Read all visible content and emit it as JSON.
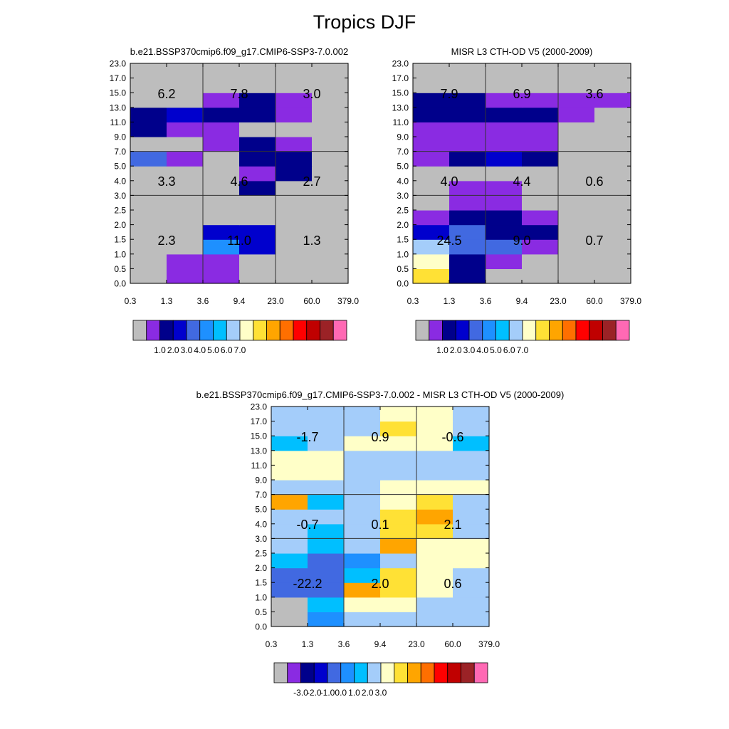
{
  "page": {
    "title": "Tropics DJF"
  },
  "palette": [
    "#bdbdbd",
    "#8a2be2",
    "#00008b",
    "#0000cd",
    "#4169e1",
    "#1e90ff",
    "#00bfff",
    "#a4cdfa",
    "#ffffc8",
    "#ffe135",
    "#ffa500",
    "#ff6f00",
    "#ff0000",
    "#c00000",
    "#9b2226",
    "#ff69b4"
  ],
  "chart_data": [
    {
      "type": "heatmap",
      "title": "b.e21.BSSP370cmip6.f09_g17.CMIP6-SSP3-7.0.002",
      "x_ticks": [
        "0.3",
        "1.3",
        "3.6",
        "9.4",
        "23.0",
        "60.0",
        "379.0"
      ],
      "y_ticks": [
        "0.0",
        "0.5",
        "1.0",
        "1.5",
        "2.0",
        "2.5",
        "3.0",
        "4.0",
        "5.0",
        "7.0",
        "9.0",
        "11.0",
        "13.0",
        "15.0",
        "17.0",
        "23.0"
      ],
      "grid": {
        "x_breaks": [
          "3.6",
          "23.0"
        ],
        "y_breaks": [
          "3.0",
          "7.0"
        ]
      },
      "cells_note": "rows listed bottom (0.0-0.5) to top (17.0-23.0); values are palette indices",
      "cells": [
        [
          0,
          1,
          1,
          0,
          0,
          0
        ],
        [
          0,
          1,
          1,
          0,
          0,
          0
        ],
        [
          0,
          0,
          5,
          3,
          0,
          0
        ],
        [
          0,
          0,
          3,
          3,
          0,
          0
        ],
        [
          0,
          0,
          0,
          0,
          0,
          0
        ],
        [
          0,
          0,
          0,
          0,
          0,
          0
        ],
        [
          0,
          0,
          0,
          2,
          0,
          0
        ],
        [
          0,
          0,
          0,
          1,
          2,
          0
        ],
        [
          4,
          1,
          0,
          2,
          2,
          0
        ],
        [
          0,
          0,
          1,
          2,
          1,
          0
        ],
        [
          2,
          1,
          1,
          0,
          0,
          0
        ],
        [
          2,
          3,
          2,
          2,
          1,
          0
        ],
        [
          0,
          0,
          1,
          2,
          1,
          0
        ],
        [
          0,
          0,
          0,
          0,
          0,
          0
        ],
        [
          0,
          0,
          0,
          0,
          0,
          0
        ]
      ],
      "box_labels": [
        {
          "column": 0,
          "row": 2,
          "value": "2.3"
        },
        {
          "column": 1,
          "row": 2,
          "value": "11.0"
        },
        {
          "column": 2,
          "row": 2,
          "value": "1.3"
        },
        {
          "column": 0,
          "row": 1,
          "value": "3.3"
        },
        {
          "column": 1,
          "row": 1,
          "value": "4.6"
        },
        {
          "column": 2,
          "row": 1,
          "value": "2.7"
        },
        {
          "column": 0,
          "row": 0,
          "value": "6.2"
        },
        {
          "column": 1,
          "row": 0,
          "value": "7.8"
        },
        {
          "column": 2,
          "row": 0,
          "value": "3.0"
        }
      ],
      "colorbar_labels": [
        "1.0",
        "2.0",
        "3.0",
        "4.0",
        "5.0",
        "6.0",
        "7.0"
      ]
    },
    {
      "type": "heatmap",
      "title": "MISR L3 CTH-OD V5 (2000-2009)",
      "x_ticks": [
        "0.3",
        "1.3",
        "3.6",
        "9.4",
        "23.0",
        "60.0",
        "379.0"
      ],
      "y_ticks": [
        "0.0",
        "0.5",
        "1.0",
        "1.5",
        "2.0",
        "2.5",
        "3.0",
        "4.0",
        "5.0",
        "7.0",
        "9.0",
        "11.0",
        "13.0",
        "15.0",
        "17.0",
        "23.0"
      ],
      "grid": {
        "x_breaks": [
          "3.6",
          "23.0"
        ],
        "y_breaks": [
          "3.0",
          "7.0"
        ]
      },
      "cells_note": "rows listed bottom (0.0-0.5) to top (17.0-23.0); values are palette indices",
      "cells": [
        [
          9,
          2,
          0,
          0,
          0,
          0
        ],
        [
          8,
          2,
          1,
          0,
          0,
          0
        ],
        [
          7,
          4,
          4,
          1,
          0,
          0
        ],
        [
          3,
          4,
          2,
          2,
          0,
          0
        ],
        [
          1,
          2,
          2,
          1,
          0,
          0
        ],
        [
          0,
          1,
          1,
          0,
          0,
          0
        ],
        [
          0,
          1,
          1,
          0,
          0,
          0
        ],
        [
          0,
          0,
          0,
          0,
          0,
          0
        ],
        [
          1,
          2,
          3,
          2,
          0,
          0
        ],
        [
          1,
          1,
          1,
          1,
          0,
          0
        ],
        [
          1,
          1,
          1,
          1,
          0,
          0
        ],
        [
          2,
          2,
          2,
          2,
          1,
          0
        ],
        [
          2,
          2,
          1,
          1,
          1,
          1
        ],
        [
          0,
          0,
          0,
          0,
          0,
          0
        ],
        [
          0,
          0,
          0,
          0,
          0,
          0
        ]
      ],
      "box_labels": [
        {
          "column": 0,
          "row": 2,
          "value": "24.5"
        },
        {
          "column": 1,
          "row": 2,
          "value": "9.0"
        },
        {
          "column": 2,
          "row": 2,
          "value": "0.7"
        },
        {
          "column": 0,
          "row": 1,
          "value": "4.0"
        },
        {
          "column": 1,
          "row": 1,
          "value": "4.4"
        },
        {
          "column": 2,
          "row": 1,
          "value": "0.6"
        },
        {
          "column": 0,
          "row": 0,
          "value": "7.9"
        },
        {
          "column": 1,
          "row": 0,
          "value": "6.9"
        },
        {
          "column": 2,
          "row": 0,
          "value": "3.6"
        }
      ],
      "colorbar_labels": [
        "1.0",
        "2.0",
        "3.0",
        "4.0",
        "5.0",
        "6.0",
        "7.0"
      ]
    },
    {
      "type": "heatmap",
      "title": "b.e21.BSSP370cmip6.f09_g17.CMIP6-SSP3-7.0.002 - MISR L3 CTH-OD V5 (2000-2009)",
      "x_ticks": [
        "0.3",
        "1.3",
        "3.6",
        "9.4",
        "23.0",
        "60.0",
        "379.0"
      ],
      "y_ticks": [
        "0.0",
        "0.5",
        "1.0",
        "1.5",
        "2.0",
        "2.5",
        "3.0",
        "4.0",
        "5.0",
        "7.0",
        "9.0",
        "11.0",
        "13.0",
        "15.0",
        "17.0",
        "23.0"
      ],
      "grid": {
        "x_breaks": [
          "3.6",
          "23.0"
        ],
        "y_breaks": [
          "3.0",
          "7.0"
        ]
      },
      "cells_note": "rows listed bottom (0.0-0.5) to top (17.0-23.0); values are palette indices",
      "cells": [
        [
          0,
          5,
          7,
          7,
          7,
          7
        ],
        [
          0,
          6,
          8,
          8,
          7,
          7
        ],
        [
          4,
          4,
          10,
          9,
          8,
          7
        ],
        [
          4,
          4,
          6,
          9,
          8,
          7
        ],
        [
          6,
          4,
          5,
          7,
          8,
          8
        ],
        [
          7,
          6,
          7,
          10,
          8,
          8
        ],
        [
          7,
          6,
          7,
          9,
          9,
          7
        ],
        [
          7,
          7,
          7,
          9,
          10,
          7
        ],
        [
          10,
          6,
          7,
          8,
          9,
          7
        ],
        [
          7,
          7,
          7,
          8,
          8,
          8
        ],
        [
          8,
          8,
          7,
          7,
          7,
          7
        ],
        [
          8,
          8,
          7,
          7,
          7,
          7
        ],
        [
          6,
          7,
          8,
          8,
          8,
          6
        ],
        [
          7,
          7,
          7,
          9,
          8,
          7
        ],
        [
          7,
          7,
          7,
          8,
          8,
          7
        ]
      ],
      "box_labels": [
        {
          "column": 0,
          "row": 2,
          "value": "-22.2"
        },
        {
          "column": 1,
          "row": 2,
          "value": "2.0"
        },
        {
          "column": 2,
          "row": 2,
          "value": "0.6"
        },
        {
          "column": 0,
          "row": 1,
          "value": "-0.7"
        },
        {
          "column": 1,
          "row": 1,
          "value": "0.1"
        },
        {
          "column": 2,
          "row": 1,
          "value": "2.1"
        },
        {
          "column": 0,
          "row": 0,
          "value": "-1.7"
        },
        {
          "column": 1,
          "row": 0,
          "value": "0.9"
        },
        {
          "column": 2,
          "row": 0,
          "value": "-0.6"
        }
      ],
      "colorbar_labels": [
        "-3.0",
        "-2.0",
        "-1.0",
        "0.0",
        "1.0",
        "2.0",
        "3.0"
      ]
    }
  ]
}
